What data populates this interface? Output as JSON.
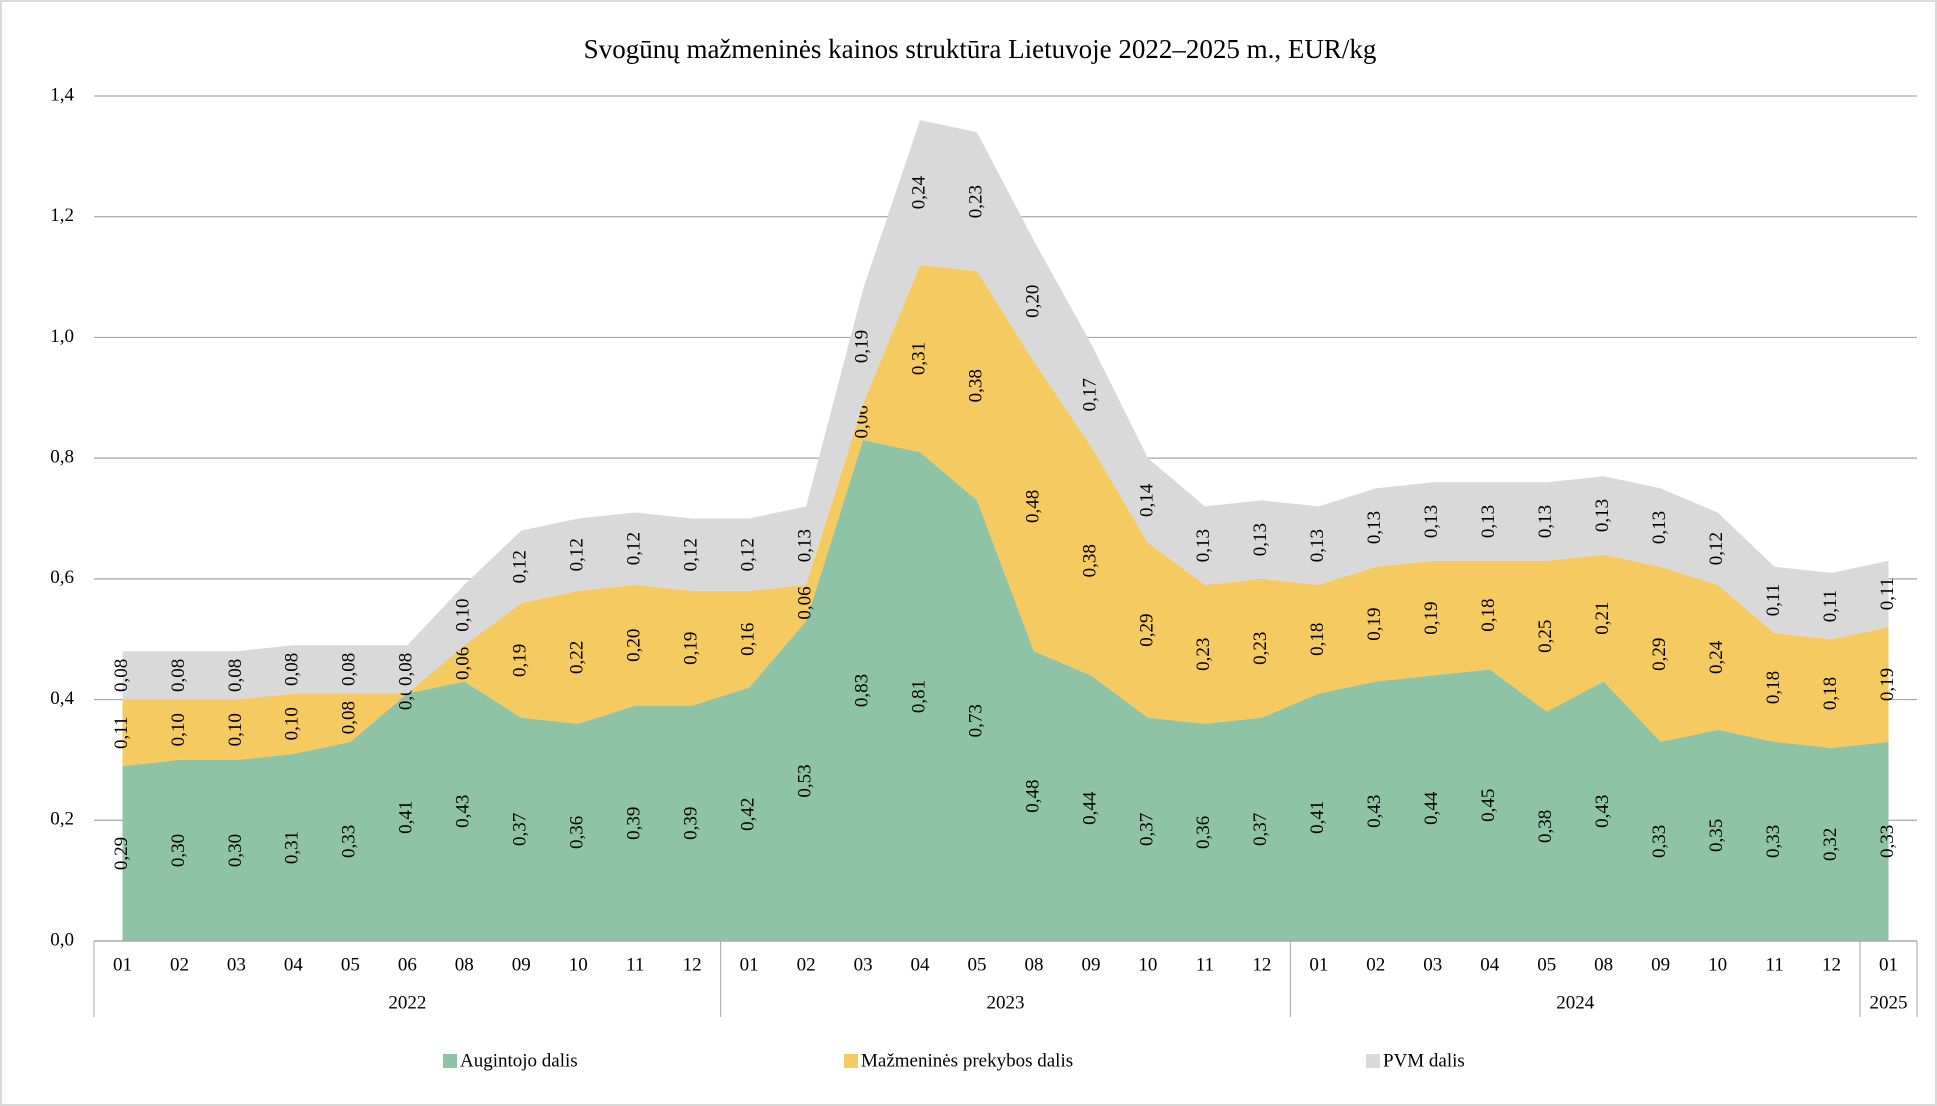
{
  "chart_data": {
    "type": "stacked_area",
    "title": "Svogūnų mažmeninės kainos struktūra Lietuvoje 2022–2025 m., EUR/kg",
    "category_groups": [
      {
        "name": "2022",
        "categories": [
          "01",
          "02",
          "03",
          "04",
          "05",
          "06",
          "08",
          "09",
          "10",
          "11",
          "12"
        ]
      },
      {
        "name": "2023",
        "categories": [
          "01",
          "02",
          "03",
          "04",
          "05",
          "08",
          "09",
          "10",
          "11",
          "12"
        ]
      },
      {
        "name": "2024",
        "categories": [
          "01",
          "02",
          "03",
          "04",
          "05",
          "08",
          "09",
          "10",
          "11",
          "12"
        ]
      },
      {
        "name": "2025",
        "categories": [
          "01"
        ]
      }
    ],
    "ylim": [
      0,
      1.4
    ],
    "yticks": [
      {
        "value": 0,
        "label": "0,0"
      },
      {
        "value": 0.2,
        "label": "0,2"
      },
      {
        "value": 0.4,
        "label": "0,4"
      },
      {
        "value": 0.6,
        "label": "0,6"
      },
      {
        "value": 0.8,
        "label": "0,8"
      },
      {
        "value": 1.0,
        "label": "1,0"
      },
      {
        "value": 1.2,
        "label": "1,2"
      },
      {
        "value": 1.4,
        "label": "1,4"
      }
    ],
    "grid": true,
    "legend": "bottom",
    "series": [
      {
        "name": "Augintojo dalis",
        "color": "#8fc3a5",
        "values": [
          0.29,
          0.3,
          0.3,
          0.31,
          0.33,
          0.41,
          0.43,
          0.37,
          0.36,
          0.39,
          0.39,
          0.42,
          0.53,
          0.83,
          0.81,
          0.73,
          0.48,
          0.44,
          0.37,
          0.36,
          0.37,
          0.41,
          0.43,
          0.44,
          0.45,
          0.38,
          0.43,
          0.33,
          0.35,
          0.33,
          0.32,
          0.33
        ],
        "value_labels": [
          "0,29",
          "0,30",
          "0,30",
          "0,31",
          "0,33",
          "0,41",
          "0,43",
          "0,37",
          "0,36",
          "0,39",
          "0,39",
          "0,42",
          "0,53",
          "0,83",
          "0,81",
          "0,73",
          "0,48",
          "0,44",
          "0,37",
          "0,36",
          "0,37",
          "0,41",
          "0,43",
          "0,44",
          "0,45",
          "0,38",
          "0,43",
          "0,33",
          "0,35",
          "0,33",
          "0,32",
          "0,33"
        ]
      },
      {
        "name": "Mažmeninės prekybos dalis",
        "color": "#f5ca60",
        "values": [
          0.11,
          0.1,
          0.1,
          0.1,
          0.08,
          0.0,
          0.06,
          0.19,
          0.22,
          0.2,
          0.19,
          0.16,
          0.06,
          0.06,
          0.31,
          0.38,
          0.48,
          0.38,
          0.29,
          0.23,
          0.23,
          0.18,
          0.19,
          0.19,
          0.18,
          0.25,
          0.21,
          0.29,
          0.24,
          0.18,
          0.18,
          0.19
        ],
        "value_labels": [
          "0,11",
          "0,10",
          "0,10",
          "0,10",
          "0,08",
          "0,00",
          "0,06",
          "0,19",
          "0,22",
          "0,20",
          "0,19",
          "0,16",
          "0,06",
          "0,06",
          "0,31",
          "0,38",
          "0,48",
          "0,38",
          "0,29",
          "0,23",
          "0,23",
          "0,18",
          "0,19",
          "0,19",
          "0,18",
          "0,25",
          "0,21",
          "0,29",
          "0,24",
          "0,18",
          "0,18",
          "0,19"
        ]
      },
      {
        "name": "PVM dalis",
        "color": "#d9d9d9",
        "values": [
          0.08,
          0.08,
          0.08,
          0.08,
          0.08,
          0.08,
          0.1,
          0.12,
          0.12,
          0.12,
          0.12,
          0.12,
          0.13,
          0.19,
          0.24,
          0.23,
          0.2,
          0.17,
          0.14,
          0.13,
          0.13,
          0.13,
          0.13,
          0.13,
          0.13,
          0.13,
          0.13,
          0.13,
          0.12,
          0.11,
          0.11,
          0.11
        ],
        "value_labels": [
          "0,08",
          "0,08",
          "0,08",
          "0,08",
          "0,08",
          "0,08",
          "0,10",
          "0,12",
          "0,12",
          "0,12",
          "0,12",
          "0,12",
          "0,13",
          "0,19",
          "0,24",
          "0,23",
          "0,20",
          "0,17",
          "0,14",
          "0,13",
          "0,13",
          "0,13",
          "0,13",
          "0,13",
          "0,13",
          "0,13",
          "0,13",
          "0,13",
          "0,12",
          "0,11",
          "0,11",
          "0,11"
        ]
      }
    ]
  }
}
